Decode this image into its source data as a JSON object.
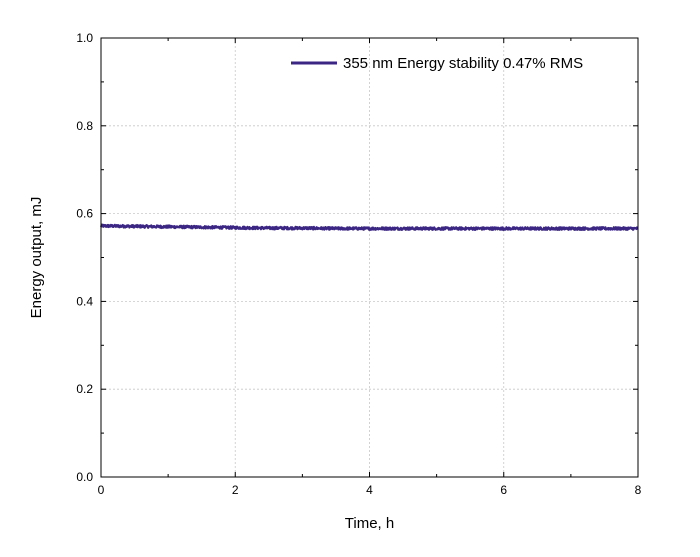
{
  "chart_data": {
    "type": "line",
    "xlabel": "Time, h",
    "ylabel": "Energy output, mJ",
    "xlim": [
      0,
      8
    ],
    "ylim": [
      0.0,
      1.0
    ],
    "x_ticks": [
      0,
      2,
      4,
      6,
      8
    ],
    "x_tick_labels": [
      "0",
      "2",
      "4",
      "6",
      "8"
    ],
    "y_ticks": [
      0.0,
      0.2,
      0.4,
      0.6,
      0.8,
      1.0
    ],
    "y_tick_labels": [
      "0.0",
      "0.2",
      "0.4",
      "0.6",
      "0.8",
      "1.0"
    ],
    "grid": true,
    "legend_position": "top-right",
    "series": [
      {
        "name": "355 nm Energy stability 0.47% RMS",
        "color": "#3b2683",
        "x": [
          0,
          0.5,
          1,
          1.5,
          2,
          2.5,
          3,
          3.5,
          4,
          4.5,
          5,
          5.5,
          6,
          6.5,
          7,
          7.5,
          8
        ],
        "y": [
          0.572,
          0.571,
          0.57,
          0.569,
          0.568,
          0.567,
          0.567,
          0.566,
          0.566,
          0.566,
          0.566,
          0.566,
          0.566,
          0.566,
          0.566,
          0.566,
          0.566
        ]
      }
    ]
  }
}
